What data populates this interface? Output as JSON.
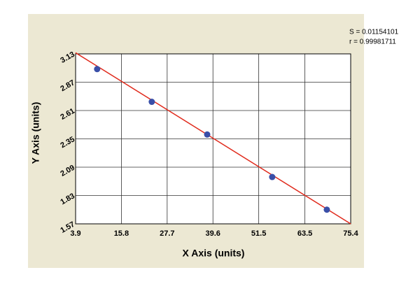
{
  "chart_data": {
    "type": "scatter",
    "x_label": "X Axis (units)",
    "y_label": "Y Axis (units)",
    "annotations": [
      "S = 0.01154101",
      "r = 0.99981711"
    ],
    "points": {
      "x": [
        9.5,
        23.7,
        38.1,
        55.0,
        69.2
      ],
      "y": [
        2.99,
        2.69,
        2.39,
        2.0,
        1.7
      ],
      "color": "#3a4fa8"
    },
    "fit_line": {
      "x": [
        3.9,
        75.4
      ],
      "y": [
        3.14,
        1.57
      ],
      "color": "#e02a1c"
    },
    "xlim": [
      3.9,
      75.4
    ],
    "xticks": [
      3.9,
      15.8,
      27.7,
      39.6,
      51.5,
      63.5,
      75.4
    ],
    "ylim": [
      1.57,
      3.13
    ],
    "yticks": [
      1.57,
      1.83,
      2.09,
      2.35,
      2.61,
      2.87,
      3.13
    ],
    "grid": true
  }
}
